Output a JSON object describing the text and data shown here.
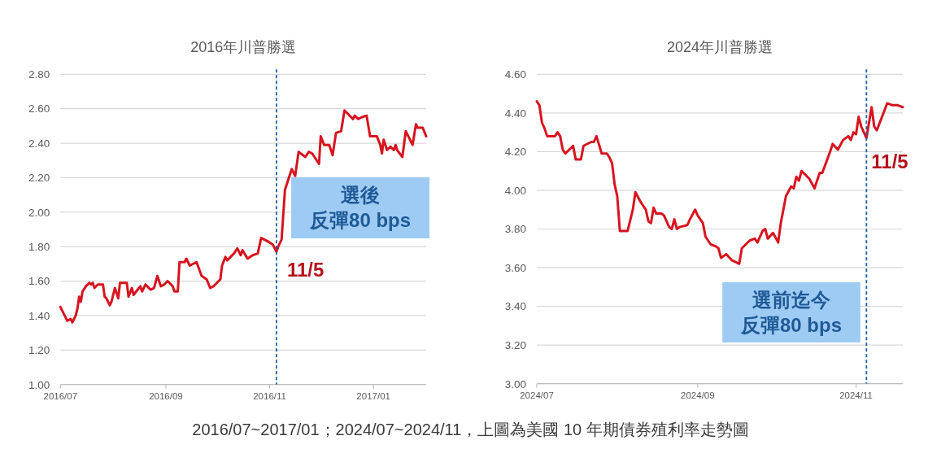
{
  "chart_data": [
    {
      "type": "line",
      "title": "2016年川普勝選",
      "x": [
        "2016-07-01",
        "2016-07-05",
        "2016-07-07",
        "2016-07-08",
        "2016-07-10",
        "2016-07-11",
        "2016-07-12",
        "2016-07-13",
        "2016-07-14",
        "2016-07-16",
        "2016-07-18",
        "2016-07-19",
        "2016-07-20",
        "2016-07-21",
        "2016-07-23",
        "2016-07-26",
        "2016-07-27",
        "2016-07-28",
        "2016-07-30",
        "2016-07-31",
        "2016-08-02",
        "2016-08-04",
        "2016-08-05",
        "2016-08-09",
        "2016-08-10",
        "2016-08-12",
        "2016-08-13",
        "2016-08-17",
        "2016-08-18",
        "2016-08-20",
        "2016-08-23",
        "2016-08-25",
        "2016-08-27",
        "2016-08-29",
        "2016-08-31",
        "2016-09-02",
        "2016-09-05",
        "2016-09-06",
        "2016-09-08",
        "2016-09-09",
        "2016-09-12",
        "2016-09-13",
        "2016-09-15",
        "2016-09-19",
        "2016-09-22",
        "2016-09-25",
        "2016-09-27",
        "2016-09-29",
        "2016-10-01",
        "2016-10-03",
        "2016-10-04",
        "2016-10-06",
        "2016-10-07",
        "2016-10-11",
        "2016-10-13",
        "2016-10-15",
        "2016-10-16",
        "2016-10-19",
        "2016-10-22",
        "2016-10-25",
        "2016-10-27",
        "2016-10-31",
        "2016-11-03",
        "2016-11-05",
        "2016-11-06",
        "2016-11-08",
        "2016-11-10",
        "2016-11-12",
        "2016-11-14",
        "2016-11-16",
        "2016-11-18",
        "2016-11-22",
        "2016-11-24",
        "2016-11-26",
        "2016-11-30",
        "2016-12-01",
        "2016-12-03",
        "2016-12-06",
        "2016-12-08",
        "2016-12-10",
        "2016-12-13",
        "2016-12-15",
        "2016-12-17",
        "2016-12-20",
        "2016-12-21",
        "2016-12-23",
        "2016-12-25",
        "2016-12-28",
        "2016-12-30",
        "2017-01-03",
        "2017-01-05",
        "2017-01-06",
        "2017-01-07",
        "2017-01-09",
        "2017-01-11",
        "2017-01-13",
        "2017-01-14",
        "2017-01-15",
        "2017-01-18",
        "2017-01-20",
        "2017-01-22",
        "2017-01-24",
        "2017-01-26",
        "2017-01-27",
        "2017-01-30",
        "2017-02-01"
      ],
      "series": [
        {
          "color": "#d7141f",
          "values": [
            1.45,
            1.37,
            1.38,
            1.36,
            1.4,
            1.44,
            1.51,
            1.48,
            1.54,
            1.57,
            1.59,
            1.58,
            1.59,
            1.56,
            1.58,
            1.58,
            1.51,
            1.5,
            1.46,
            1.48,
            1.56,
            1.5,
            1.59,
            1.59,
            1.51,
            1.56,
            1.52,
            1.57,
            1.54,
            1.58,
            1.55,
            1.56,
            1.63,
            1.57,
            1.58,
            1.6,
            1.57,
            1.54,
            1.54,
            1.71,
            1.71,
            1.73,
            1.69,
            1.71,
            1.63,
            1.61,
            1.56,
            1.57,
            1.59,
            1.61,
            1.69,
            1.74,
            1.72,
            1.76,
            1.79,
            1.75,
            1.78,
            1.73,
            1.75,
            1.76,
            1.85,
            1.83,
            1.81,
            1.77,
            1.8,
            1.84,
            2.13,
            2.19,
            2.25,
            2.21,
            2.35,
            2.32,
            2.35,
            2.34,
            2.28,
            2.44,
            2.39,
            2.39,
            2.33,
            2.46,
            2.47,
            2.59,
            2.57,
            2.54,
            2.56,
            2.54,
            2.55,
            2.56,
            2.44,
            2.44,
            2.39,
            2.34,
            2.42,
            2.36,
            2.38,
            2.36,
            2.39,
            2.36,
            2.32,
            2.47,
            2.43,
            2.39,
            2.51,
            2.49,
            2.49,
            2.44
          ]
        }
      ],
      "xlim": [
        "2016-07-01",
        "2017-02-01"
      ],
      "xticks": [
        {
          "value": "2016-07",
          "label": "2016/07"
        },
        {
          "value": "2016-09",
          "label": "2016/09"
        },
        {
          "value": "2016-11",
          "label": "2016/11"
        },
        {
          "value": "2017-01",
          "label": "2017/01"
        }
      ],
      "ylim": [
        1,
        2.8
      ],
      "yticks": [
        {
          "value": 1,
          "label": "1.00"
        },
        {
          "value": 1.2,
          "label": "1.20"
        },
        {
          "value": 1.4,
          "label": "1.40"
        },
        {
          "value": 1.6,
          "label": "1.60"
        },
        {
          "value": 1.8,
          "label": "1.80"
        },
        {
          "value": 2,
          "label": "2.00"
        },
        {
          "value": 2.2,
          "label": "2.20"
        },
        {
          "value": 2.4,
          "label": "2.40"
        },
        {
          "value": 2.6,
          "label": "2.60"
        },
        {
          "value": 2.8,
          "label": "2.80"
        }
      ],
      "grid": "y",
      "ref_lines": [
        {
          "axis": "x",
          "value": "2016-11-05",
          "label": "11/5",
          "color": "#1f5ea8",
          "line_style": "dashed"
        }
      ],
      "annotations": [
        "選後",
        "反彈80 bps",
        "2016/07~2017/01；2024/07~2024/11，上圖為美國 10 年期債券殖利率走勢圖"
      ]
    },
    {
      "type": "line",
      "title": "2024年川普勝選",
      "x": [
        "2024-07-01",
        "2024-07-02",
        "2024-07-03",
        "2024-07-04",
        "2024-07-05",
        "2024-07-08",
        "2024-07-09",
        "2024-07-10",
        "2024-07-11",
        "2024-07-12",
        "2024-07-15",
        "2024-07-16",
        "2024-07-18",
        "2024-07-19",
        "2024-07-22",
        "2024-07-23",
        "2024-07-24",
        "2024-07-26",
        "2024-07-28",
        "2024-07-29",
        "2024-07-30",
        "2024-07-31",
        "2024-08-01",
        "2024-08-02",
        "2024-08-04",
        "2024-08-05",
        "2024-08-07",
        "2024-08-08",
        "2024-08-10",
        "2024-08-11",
        "2024-08-12",
        "2024-08-13",
        "2024-08-14",
        "2024-08-15",
        "2024-08-16",
        "2024-08-18",
        "2024-08-19",
        "2024-08-21",
        "2024-08-22",
        "2024-08-23",
        "2024-08-24",
        "2024-08-25",
        "2024-08-28",
        "2024-08-29",
        "2024-08-31",
        "2024-09-01",
        "2024-09-03",
        "2024-09-04",
        "2024-09-06",
        "2024-09-08",
        "2024-09-09",
        "2024-09-10",
        "2024-09-12",
        "2024-09-14",
        "2024-09-17",
        "2024-09-18",
        "2024-09-21",
        "2024-09-23",
        "2024-09-24",
        "2024-09-26",
        "2024-09-27",
        "2024-09-28",
        "2024-09-30",
        "2024-10-02",
        "2024-10-03",
        "2024-10-05",
        "2024-10-07",
        "2024-10-08",
        "2024-10-09",
        "2024-10-10",
        "2024-10-11",
        "2024-10-14",
        "2024-10-16",
        "2024-10-18",
        "2024-10-19",
        "2024-10-22",
        "2024-10-23",
        "2024-10-25",
        "2024-10-27",
        "2024-10-29",
        "2024-10-30",
        "2024-10-31",
        "2024-11-01",
        "2024-11-02",
        "2024-11-03",
        "2024-11-05",
        "2024-11-07",
        "2024-11-08",
        "2024-11-09",
        "2024-11-13",
        "2024-11-15",
        "2024-11-17",
        "2024-11-19"
      ],
      "series": [
        {
          "color": "#d7141f",
          "values": [
            4.46,
            4.44,
            4.35,
            4.32,
            4.28,
            4.28,
            4.3,
            4.28,
            4.21,
            4.19,
            4.23,
            4.16,
            4.16,
            4.23,
            4.25,
            4.25,
            4.28,
            4.19,
            4.19,
            4.17,
            4.14,
            4.03,
            3.97,
            3.79,
            3.79,
            3.79,
            3.9,
            3.99,
            3.94,
            3.92,
            3.9,
            3.84,
            3.83,
            3.91,
            3.88,
            3.88,
            3.87,
            3.81,
            3.8,
            3.85,
            3.8,
            3.81,
            3.82,
            3.85,
            3.9,
            3.87,
            3.83,
            3.76,
            3.72,
            3.71,
            3.7,
            3.65,
            3.67,
            3.64,
            3.62,
            3.7,
            3.74,
            3.75,
            3.73,
            3.79,
            3.8,
            3.75,
            3.78,
            3.73,
            3.83,
            3.97,
            4.02,
            4.01,
            4.07,
            4.05,
            4.1,
            4.06,
            4.01,
            4.09,
            4.09,
            4.2,
            4.24,
            4.21,
            4.26,
            4.28,
            4.26,
            4.3,
            4.29,
            4.38,
            4.33,
            4.27,
            4.43,
            4.33,
            4.31,
            4.45,
            4.44,
            4.44,
            4.43
          ]
        }
      ],
      "xlim": [
        "2024-07-01",
        "2024-11-19"
      ],
      "xticks": [
        {
          "value": "2024-07",
          "label": "2024/07"
        },
        {
          "value": "2024-09",
          "label": "2024/09"
        },
        {
          "value": "2024-11",
          "label": "2024/11"
        }
      ],
      "ylim": [
        3,
        4.6
      ],
      "yticks": [
        {
          "value": 3,
          "label": "3.00"
        },
        {
          "value": 3.2,
          "label": "3.20"
        },
        {
          "value": 3.4,
          "label": "3.40"
        },
        {
          "value": 3.6,
          "label": "3.60"
        },
        {
          "value": 3.8,
          "label": "3.80"
        },
        {
          "value": 4,
          "label": "4.00"
        },
        {
          "value": 4.2,
          "label": "4.20"
        },
        {
          "value": 4.4,
          "label": "4.40"
        },
        {
          "value": 4.6,
          "label": "4.60"
        }
      ],
      "grid": "y",
      "ref_lines": [
        {
          "axis": "x",
          "value": "2024-11-05",
          "label": "11/5",
          "color": "#1f5ea8",
          "line_style": "dashed"
        }
      ],
      "annotations": [
        "選前迄今",
        "反彈80 bps"
      ]
    }
  ]
}
